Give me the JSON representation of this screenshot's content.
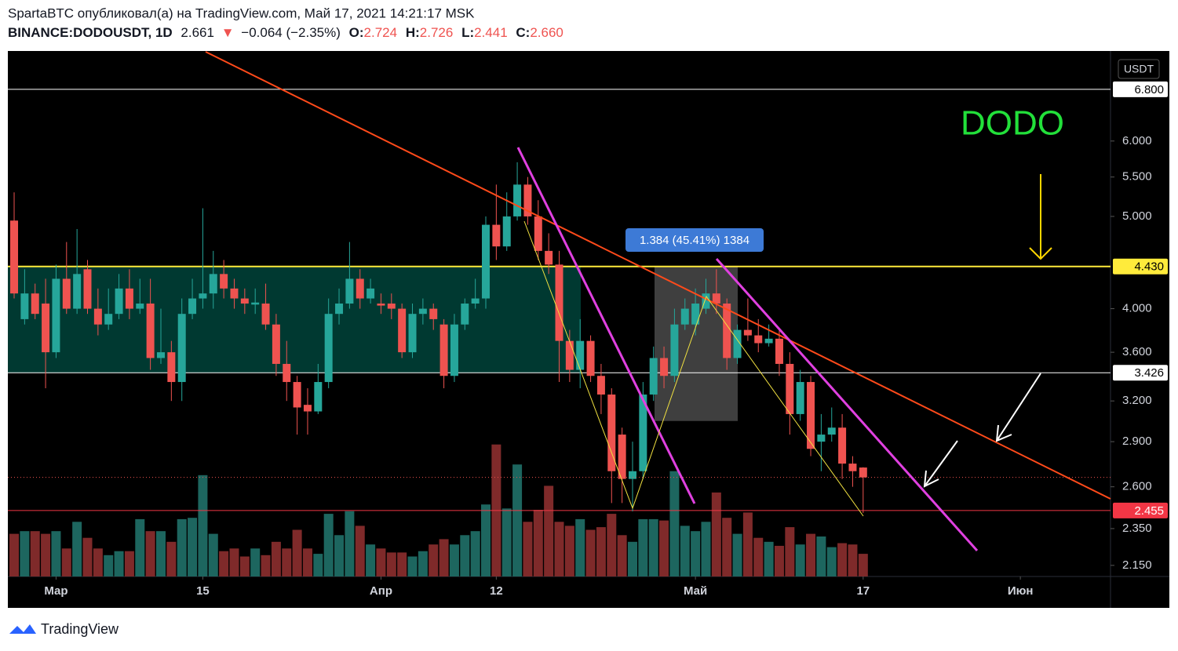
{
  "header": {
    "publisher": "SpartaBTC опубликовал(а) на TradingView.com, Май 17, 2021 14:21:17 MSK",
    "symbol": "BINANCE:DODOUSDT, 1D",
    "last": "2.661",
    "arrow": "▼",
    "change": "−0.064 (−2.35%)",
    "o_label": "O:",
    "o_value": "2.724",
    "h_label": "H:",
    "h_value": "2.726",
    "l_label": "L:",
    "l_value": "2.441",
    "c_label": "C:",
    "c_value": "2.660"
  },
  "footer": {
    "brand": "TradingView"
  },
  "chart_data": {
    "type": "candlestick",
    "currency": "USDT",
    "symbol_label": "DODO",
    "measure_label": "1.384 (45.41%) 1384",
    "log_scale": true,
    "up_color": "#26a69a",
    "down_color": "#ef5350",
    "volume_up_color": "#1d665f",
    "volume_down_color": "#7f2a2a",
    "ylim": [
      2.093,
      7.46
    ],
    "yticks": [
      {
        "value": 6.0,
        "label": "6.000"
      },
      {
        "value": 5.5,
        "label": "5.500"
      },
      {
        "value": 5.0,
        "label": "5.000"
      },
      {
        "value": 4.0,
        "label": "4.000"
      },
      {
        "value": 3.6,
        "label": "3.600"
      },
      {
        "value": 3.2,
        "label": "3.200"
      },
      {
        "value": 2.9,
        "label": "2.900"
      },
      {
        "value": 2.6,
        "label": "2.600"
      },
      {
        "value": 2.35,
        "label": "2.350"
      },
      {
        "value": 2.15,
        "label": "2.150"
      }
    ],
    "levels": [
      {
        "value": 6.8,
        "label": "6.800",
        "color": "#ffffff"
      },
      {
        "value": 4.43,
        "label": "4.430",
        "color": "#ffeb3b"
      },
      {
        "value": 3.426,
        "label": "3.426",
        "color": "#ffffff"
      },
      {
        "value": 2.455,
        "label": "2.455",
        "color": "#f23645"
      }
    ],
    "xlim": [
      -0.6,
      104.6
    ],
    "xticks": [
      {
        "value": 4,
        "label": "Мар"
      },
      {
        "value": 18,
        "label": "15"
      },
      {
        "value": 35,
        "label": "Апр"
      },
      {
        "value": 46,
        "label": "12"
      },
      {
        "value": 65,
        "label": "Май"
      },
      {
        "value": 81,
        "label": "17"
      },
      {
        "value": 96,
        "label": "Июн"
      }
    ],
    "volume_lim": [
      0,
      100
    ],
    "open": [
      4.95,
      3.9,
      4.15,
      4.05,
      3.6,
      4.3,
      4.0,
      4.4,
      4.0,
      3.85,
      3.95,
      4.2,
      4.0,
      4.05,
      3.55,
      3.6,
      3.35,
      3.95,
      4.1,
      4.15,
      4.35,
      4.2,
      4.1,
      4.04,
      4.05,
      3.85,
      3.5,
      3.35,
      3.17,
      3.12,
      3.35,
      3.95,
      4.05,
      4.3,
      4.1,
      4.05,
      4.05,
      4.0,
      3.6,
      3.95,
      4.0,
      3.85,
      3.4,
      3.85,
      4.05,
      4.1,
      4.9,
      4.65,
      5.0,
      5.4,
      5.0,
      4.6,
      4.45,
      3.7,
      3.45,
      3.7,
      3.4,
      3.25,
      2.95,
      2.65,
      2.7,
      3.25,
      3.55,
      3.4,
      3.85,
      3.85,
      4.0,
      4.15,
      4.05,
      3.55,
      3.8,
      3.75,
      3.68,
      3.72,
      3.5,
      3.1,
      3.35,
      2.9,
      2.95,
      3.0,
      2.75,
      2.724
    ],
    "high": [
      5.3,
      4.4,
      4.25,
      4.3,
      4.45,
      4.7,
      4.85,
      4.5,
      4.2,
      4.2,
      4.35,
      4.4,
      4.3,
      4.3,
      4.0,
      3.7,
      4.1,
      4.3,
      5.1,
      4.6,
      4.5,
      4.3,
      4.2,
      4.2,
      4.25,
      3.95,
      3.7,
      3.4,
      3.3,
      3.5,
      4.1,
      4.2,
      4.7,
      4.4,
      4.3,
      4.15,
      4.15,
      4.05,
      4.05,
      4.1,
      4.05,
      3.9,
      3.95,
      4.1,
      4.3,
      5.0,
      5.4,
      5.3,
      5.7,
      5.5,
      5.2,
      4.8,
      4.6,
      3.8,
      3.9,
      3.75,
      3.5,
      3.3,
      3.0,
      2.9,
      3.35,
      3.65,
      3.65,
      4.0,
      4.1,
      4.2,
      4.3,
      4.4,
      4.1,
      3.85,
      4.1,
      3.9,
      3.85,
      3.8,
      3.6,
      3.45,
      3.4,
      3.1,
      3.15,
      3.1,
      2.8,
      2.726
    ],
    "low": [
      4.1,
      3.85,
      3.9,
      3.3,
      3.55,
      3.95,
      3.95,
      3.95,
      3.75,
      3.8,
      3.9,
      3.9,
      3.95,
      3.45,
      3.5,
      3.2,
      3.2,
      3.9,
      4.0,
      4.0,
      4.1,
      4.0,
      3.95,
      3.95,
      3.8,
      3.4,
      3.2,
      2.95,
      2.95,
      3.1,
      3.3,
      3.85,
      4.0,
      4.0,
      4.05,
      3.95,
      3.9,
      3.55,
      3.55,
      3.85,
      3.8,
      3.3,
      3.35,
      3.8,
      4.0,
      4.0,
      4.5,
      4.6,
      4.95,
      4.9,
      4.5,
      4.35,
      3.35,
      3.35,
      3.3,
      3.35,
      3.1,
      2.5,
      2.5,
      2.45,
      2.65,
      3.2,
      3.3,
      3.35,
      3.8,
      3.75,
      3.95,
      3.95,
      3.45,
      3.5,
      3.7,
      3.6,
      3.65,
      3.4,
      2.95,
      3.05,
      2.8,
      2.7,
      2.9,
      2.65,
      2.6,
      2.441
    ],
    "close": [
      4.15,
      4.15,
      3.95,
      3.6,
      4.3,
      4.0,
      4.35,
      4.0,
      3.85,
      3.95,
      4.2,
      4.0,
      4.05,
      3.55,
      3.6,
      3.35,
      3.95,
      4.1,
      4.15,
      4.35,
      4.2,
      4.1,
      4.05,
      4.06,
      3.85,
      3.5,
      3.35,
      3.15,
      3.12,
      3.35,
      3.95,
      4.05,
      4.3,
      4.1,
      4.2,
      4.03,
      4.0,
      3.6,
      3.95,
      4.0,
      3.9,
      3.4,
      3.85,
      4.05,
      4.1,
      4.9,
      4.65,
      5.0,
      5.4,
      5.0,
      4.6,
      4.45,
      3.7,
      3.45,
      3.7,
      3.4,
      3.25,
      2.7,
      2.65,
      2.7,
      3.25,
      3.55,
      3.4,
      3.85,
      4.0,
      4.05,
      4.15,
      4.05,
      3.55,
      3.8,
      3.75,
      3.68,
      3.72,
      3.5,
      3.1,
      3.35,
      2.85,
      2.95,
      3.0,
      2.75,
      2.7,
      2.66
    ],
    "volume": [
      32,
      34,
      34,
      32,
      34,
      21,
      41,
      29,
      21,
      16,
      19,
      19,
      43,
      34,
      34,
      26,
      43,
      44,
      76,
      32,
      19,
      21,
      15,
      21,
      16,
      26,
      21,
      35,
      21,
      17,
      47,
      31,
      49,
      38,
      24,
      21,
      18,
      18,
      15,
      19,
      24,
      28,
      24,
      31,
      34,
      54,
      99,
      51,
      84,
      41,
      50,
      68,
      41,
      38,
      43,
      35,
      37,
      47,
      31,
      26,
      43,
      43,
      42,
      79,
      38,
      34,
      41,
      63,
      44,
      32,
      48,
      29,
      26,
      23,
      37,
      24,
      32,
      30,
      22,
      25,
      24,
      17
    ]
  }
}
